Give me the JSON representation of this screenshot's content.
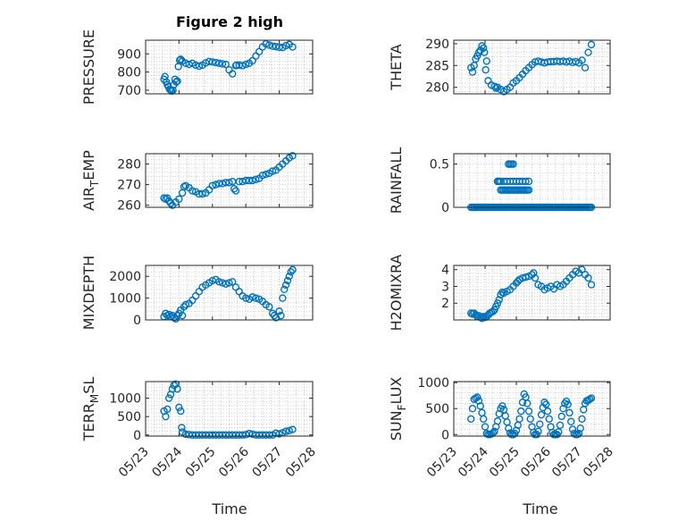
{
  "figure": {
    "title": "Figure 2 high",
    "marker_color": "#0072BD",
    "grid": true,
    "x_ticks": [
      "05/23",
      "05/24",
      "05/25",
      "05/26",
      "05/27",
      "05/28"
    ]
  },
  "chart_data": [
    {
      "type": "scatter",
      "title": "Figure 2 high",
      "ylabel": "PRESSURE",
      "ylabel_segments": [
        {
          "text": "PRESSURE"
        }
      ],
      "xlim": [
        "05/23",
        "05/28"
      ],
      "ylim": [
        680,
        975
      ],
      "yticks": [
        "700",
        "800",
        "900"
      ],
      "x": [
        23.55,
        23.58,
        23.62,
        23.65,
        23.68,
        23.72,
        23.75,
        23.78,
        23.82,
        23.85,
        23.88,
        23.92,
        23.95,
        23.98,
        24.02,
        24.05,
        24.1,
        24.2,
        24.3,
        24.4,
        24.5,
        24.6,
        24.7,
        24.8,
        24.9,
        25.0,
        25.1,
        25.2,
        25.3,
        25.4,
        25.5,
        25.6,
        25.7,
        25.72,
        25.8,
        25.9,
        26.0,
        26.1,
        26.2,
        26.3,
        26.4,
        26.5,
        26.6,
        26.7,
        26.8,
        26.9,
        27.0,
        27.1,
        27.2,
        27.3,
        27.4
      ],
      "y": [
        760,
        775,
        745,
        730,
        720,
        705,
        700,
        695,
        700,
        730,
        760,
        745,
        750,
        830,
        865,
        870,
        860,
        848,
        842,
        848,
        838,
        832,
        838,
        850,
        858,
        855,
        852,
        848,
        845,
        842,
        812,
        790,
        835,
        838,
        838,
        835,
        842,
        848,
        862,
        888,
        912,
        938,
        955,
        948,
        942,
        940,
        936,
        935,
        945,
        952,
        938
      ]
    },
    {
      "type": "scatter",
      "title": "",
      "ylabel": "THETA",
      "ylabel_segments": [
        {
          "text": "THETA"
        }
      ],
      "xlim": [
        "05/23",
        "05/28"
      ],
      "ylim": [
        278.5,
        290.8
      ],
      "yticks": [
        "280",
        "285",
        "290"
      ],
      "x": [
        23.55,
        23.6,
        23.65,
        23.7,
        23.75,
        23.8,
        23.85,
        23.9,
        23.95,
        23.98,
        24.02,
        24.05,
        24.1,
        24.2,
        24.3,
        24.35,
        24.4,
        24.5,
        24.6,
        24.7,
        24.8,
        24.9,
        25.0,
        25.1,
        25.2,
        25.3,
        25.4,
        25.5,
        25.6,
        25.7,
        25.8,
        25.9,
        26.0,
        26.1,
        26.2,
        26.3,
        26.4,
        26.5,
        26.6,
        26.7,
        26.8,
        26.9,
        27.0,
        27.1,
        27.2,
        27.3,
        27.4
      ],
      "y": [
        284.5,
        283.5,
        285,
        286.5,
        287.2,
        288,
        288.5,
        289.5,
        289,
        288,
        284,
        286,
        281.5,
        280.5,
        280.2,
        279.8,
        280,
        279.5,
        279,
        279.5,
        280,
        281,
        281.5,
        282.2,
        283,
        283.8,
        284.5,
        285.2,
        285.8,
        286,
        285.8,
        285.6,
        285.8,
        285.9,
        285.9,
        286,
        285.9,
        286,
        285.8,
        286,
        285.7,
        285.9,
        285.6,
        286.2,
        284.5,
        288,
        289.8
      ]
    },
    {
      "type": "scatter",
      "title": "",
      "ylabel": "AIR_TEMP",
      "ylabel_segments": [
        {
          "text": "AIR"
        },
        {
          "text": "T",
          "sub": true
        },
        {
          "text": "EMP"
        }
      ],
      "xlim": [
        "05/23",
        "05/28"
      ],
      "ylim": [
        259,
        285
      ],
      "yticks": [
        "260",
        "270",
        "280"
      ],
      "x": [
        23.55,
        23.6,
        23.65,
        23.7,
        23.75,
        23.8,
        23.9,
        24.0,
        24.1,
        24.15,
        24.2,
        24.3,
        24.4,
        24.5,
        24.6,
        24.7,
        24.8,
        24.9,
        25.0,
        25.1,
        25.2,
        25.3,
        25.4,
        25.5,
        25.6,
        25.65,
        25.7,
        25.8,
        25.9,
        26.0,
        26.1,
        26.2,
        26.3,
        26.4,
        26.5,
        26.6,
        26.7,
        26.8,
        26.9,
        27.0,
        27.1,
        27.2,
        27.3,
        27.4
      ],
      "y": [
        263.5,
        263,
        263.5,
        262,
        261,
        260,
        261.5,
        263,
        266,
        269,
        269.5,
        268.5,
        267,
        266.5,
        265.5,
        265.5,
        266,
        267.5,
        269.5,
        270,
        270.5,
        270.5,
        271,
        271,
        271.5,
        268,
        267,
        271.5,
        271.5,
        272,
        272,
        272,
        272.5,
        273,
        274.5,
        275,
        275.5,
        276.5,
        277,
        278.5,
        280,
        281.5,
        283,
        284
      ]
    },
    {
      "type": "scatter",
      "title": "",
      "ylabel": "RAINFALL",
      "ylabel_segments": [
        {
          "text": "RAINFALL"
        }
      ],
      "xlim": [
        "05/23",
        "05/28"
      ],
      "ylim": [
        0,
        0.62
      ],
      "yticks": [
        "0",
        "0.5"
      ],
      "x": [
        23.55,
        23.6,
        23.65,
        23.7,
        23.75,
        23.8,
        23.85,
        23.9,
        23.95,
        24.0,
        24.05,
        24.1,
        24.15,
        24.2,
        24.25,
        24.3,
        24.35,
        24.4,
        24.45,
        24.5,
        24.55,
        24.6,
        24.65,
        24.7,
        24.75,
        24.8,
        24.85,
        24.9,
        24.95,
        25.0,
        25.05,
        25.1,
        25.15,
        25.2,
        25.25,
        25.3,
        25.35,
        25.4,
        25.45,
        25.5,
        25.55,
        25.6,
        25.65,
        25.7,
        25.75,
        25.8,
        25.85,
        25.9,
        25.95,
        26.0,
        26.05,
        26.1,
        26.15,
        26.2,
        26.25,
        26.3,
        26.35,
        26.4,
        26.45,
        26.5,
        26.55,
        26.6,
        26.65,
        26.7,
        26.75,
        26.8,
        26.85,
        26.9,
        26.95,
        27.0,
        27.05,
        27.1,
        27.15,
        27.2,
        27.25,
        27.3,
        27.35,
        27.4,
        24.4,
        24.45,
        24.5,
        24.5,
        24.55,
        24.6,
        24.65,
        24.7,
        24.75,
        24.8,
        24.85,
        24.9,
        24.95,
        25.0,
        25.05,
        25.1,
        25.15,
        25.2,
        25.25,
        25.3,
        25.35,
        25.4,
        24.4,
        24.45,
        24.6,
        24.7,
        24.8,
        24.9,
        25.0,
        25.1,
        25.2,
        25.3,
        25.4,
        24.75,
        24.8,
        24.85,
        24.9
      ],
      "y": [
        0,
        0,
        0,
        0,
        0,
        0,
        0,
        0,
        0,
        0,
        0,
        0,
        0,
        0,
        0,
        0,
        0,
        0,
        0,
        0,
        0,
        0,
        0,
        0,
        0,
        0,
        0,
        0,
        0,
        0,
        0,
        0,
        0,
        0,
        0,
        0,
        0,
        0,
        0,
        0,
        0,
        0,
        0,
        0,
        0,
        0,
        0,
        0,
        0,
        0,
        0,
        0,
        0,
        0,
        0,
        0,
        0,
        0,
        0,
        0,
        0,
        0,
        0,
        0,
        0,
        0,
        0,
        0,
        0,
        0,
        0,
        0,
        0,
        0,
        0,
        0,
        0,
        0,
        0.3,
        0.3,
        0.2,
        0.3,
        0.2,
        0.2,
        0.2,
        0.2,
        0.2,
        0.2,
        0.2,
        0.2,
        0.2,
        0.2,
        0.2,
        0.2,
        0.2,
        0.2,
        0.2,
        0.2,
        0.2,
        0.2,
        0.3,
        0.3,
        0.3,
        0.3,
        0.3,
        0.3,
        0.3,
        0.3,
        0.3,
        0.3,
        0.3,
        0.5,
        0.5,
        0.5,
        0.5
      ]
    },
    {
      "type": "scatter",
      "title": "",
      "ylabel": "MIXDEPTH",
      "ylabel_segments": [
        {
          "text": "MIXDEPTH"
        }
      ],
      "xlim": [
        "05/23",
        "05/28"
      ],
      "ylim": [
        0,
        2500
      ],
      "yticks": [
        "0",
        "1000",
        "2000"
      ],
      "x": [
        23.55,
        23.6,
        23.65,
        23.7,
        23.75,
        23.8,
        23.85,
        23.9,
        23.95,
        24.0,
        24.05,
        24.1,
        24.15,
        24.2,
        24.3,
        24.4,
        24.5,
        24.6,
        24.7,
        24.8,
        24.9,
        25.0,
        25.1,
        25.2,
        25.3,
        25.4,
        25.5,
        25.6,
        25.7,
        25.8,
        25.9,
        26.0,
        26.1,
        26.2,
        26.3,
        26.4,
        26.5,
        26.6,
        26.7,
        26.8,
        26.85,
        26.9,
        27.0,
        27.05,
        27.1,
        27.15,
        27.2,
        27.25,
        27.3,
        27.35,
        27.4
      ],
      "y": [
        150,
        300,
        200,
        250,
        150,
        200,
        100,
        50,
        200,
        300,
        450,
        200,
        600,
        700,
        750,
        900,
        1100,
        1300,
        1500,
        1600,
        1700,
        1800,
        1850,
        1750,
        1700,
        1650,
        1700,
        1750,
        1500,
        1300,
        1100,
        1000,
        950,
        1050,
        1000,
        950,
        850,
        700,
        600,
        300,
        200,
        100,
        400,
        200,
        1000,
        1400,
        1600,
        1800,
        2000,
        2200,
        2300
      ]
    },
    {
      "type": "scatter",
      "title": "",
      "ylabel": "H2OMIXRA",
      "ylabel_segments": [
        {
          "text": "H2OMIXRA"
        }
      ],
      "xlim": [
        "05/23",
        "05/28"
      ],
      "ylim": [
        1.0,
        4.25
      ],
      "yticks": [
        "2",
        "3",
        "4"
      ],
      "x": [
        23.55,
        23.6,
        23.65,
        23.7,
        23.75,
        23.8,
        23.85,
        23.9,
        23.95,
        24.0,
        24.05,
        24.1,
        24.15,
        24.2,
        24.25,
        24.3,
        24.35,
        24.4,
        24.45,
        24.5,
        24.55,
        24.6,
        24.7,
        24.8,
        24.9,
        25.0,
        25.05,
        25.1,
        25.2,
        25.3,
        25.4,
        25.5,
        25.55,
        25.6,
        25.7,
        25.8,
        25.9,
        26.0,
        26.1,
        26.2,
        26.3,
        26.4,
        26.5,
        26.6,
        26.7,
        26.8,
        26.9,
        27.0,
        27.1,
        27.2,
        27.3,
        27.4
      ],
      "y": [
        1.4,
        1.35,
        1.4,
        1.3,
        1.2,
        1.25,
        1.15,
        1.1,
        1.2,
        1.15,
        1.2,
        1.3,
        1.4,
        1.45,
        1.5,
        1.6,
        1.8,
        2.0,
        2.2,
        2.5,
        2.65,
        2.6,
        2.7,
        2.8,
        3.0,
        3.2,
        3.3,
        3.4,
        3.5,
        3.55,
        3.6,
        3.7,
        3.8,
        3.5,
        3.1,
        3.0,
        2.8,
        2.9,
        3.0,
        2.85,
        3.1,
        3.0,
        3.1,
        3.3,
        3.5,
        3.7,
        3.9,
        3.8,
        4.0,
        3.7,
        3.5,
        3.1
      ]
    },
    {
      "type": "scatter",
      "title": "",
      "ylabel": "TERR_MSL",
      "ylabel_segments": [
        {
          "text": "TERR"
        },
        {
          "text": "M",
          "sub": true
        },
        {
          "text": "SL"
        }
      ],
      "xlim": [
        "05/23",
        "05/28"
      ],
      "ylim": [
        -30,
        1450
      ],
      "yticks": [
        "0",
        "500",
        "1000"
      ],
      "x": [
        23.55,
        23.6,
        23.65,
        23.7,
        23.75,
        23.8,
        23.85,
        23.9,
        23.95,
        24.0,
        24.05,
        24.08,
        24.1,
        24.2,
        24.3,
        24.4,
        24.5,
        24.6,
        24.7,
        24.8,
        24.9,
        25.0,
        25.1,
        25.2,
        25.3,
        25.4,
        25.5,
        25.6,
        25.7,
        25.8,
        25.9,
        26.0,
        26.1,
        26.2,
        26.3,
        26.4,
        26.5,
        26.6,
        26.7,
        26.8,
        26.9,
        27.0,
        27.1,
        27.2,
        27.3,
        27.4
      ],
      "y": [
        650,
        500,
        700,
        1000,
        1100,
        1250,
        1350,
        1380,
        1250,
        750,
        650,
        200,
        80,
        20,
        10,
        0,
        0,
        0,
        0,
        0,
        0,
        0,
        0,
        0,
        0,
        0,
        0,
        0,
        0,
        0,
        0,
        10,
        40,
        20,
        0,
        0,
        0,
        0,
        0,
        0,
        50,
        30,
        60,
        100,
        120,
        150
      ]
    },
    {
      "type": "scatter",
      "title": "",
      "ylabel": "SUN_FLUX",
      "ylabel_segments": [
        {
          "text": "SUN"
        },
        {
          "text": "F",
          "sub": true
        },
        {
          "text": "LUX"
        }
      ],
      "xlim": [
        "05/23",
        "05/28"
      ],
      "ylim": [
        -30,
        1020
      ],
      "yticks": [
        "0",
        "500",
        "1000"
      ],
      "x": [
        23.55,
        23.6,
        23.65,
        23.7,
        23.75,
        23.8,
        23.85,
        23.9,
        23.95,
        24.0,
        24.05,
        24.1,
        24.15,
        24.2,
        24.25,
        24.3,
        24.35,
        24.4,
        24.45,
        24.5,
        24.55,
        24.6,
        24.65,
        24.7,
        24.75,
        24.8,
        24.85,
        24.9,
        24.95,
        25.0,
        25.05,
        25.1,
        25.15,
        25.2,
        25.25,
        25.3,
        25.35,
        25.4,
        25.45,
        25.5,
        25.55,
        25.6,
        25.65,
        25.7,
        25.75,
        25.8,
        25.85,
        25.9,
        25.95,
        26.0,
        26.05,
        26.1,
        26.15,
        26.2,
        26.25,
        26.3,
        26.35,
        26.4,
        26.45,
        26.5,
        26.55,
        26.6,
        26.65,
        26.7,
        26.75,
        26.8,
        26.85,
        26.9,
        26.95,
        27.0,
        27.05,
        27.1,
        27.15,
        27.2,
        27.25,
        27.3,
        27.35,
        27.4
      ],
      "y": [
        300,
        500,
        680,
        700,
        720,
        650,
        550,
        420,
        300,
        150,
        20,
        0,
        0,
        10,
        30,
        60,
        150,
        260,
        400,
        500,
        550,
        480,
        360,
        240,
        120,
        30,
        0,
        0,
        20,
        80,
        180,
        300,
        450,
        620,
        780,
        720,
        600,
        450,
        300,
        150,
        40,
        0,
        0,
        60,
        200,
        380,
        520,
        620,
        580,
        450,
        300,
        150,
        40,
        0,
        0,
        0,
        50,
        180,
        350,
        500,
        600,
        640,
        580,
        420,
        250,
        100,
        20,
        0,
        0,
        20,
        120,
        300,
        480,
        600,
        650,
        660,
        680,
        700
      ]
    }
  ]
}
